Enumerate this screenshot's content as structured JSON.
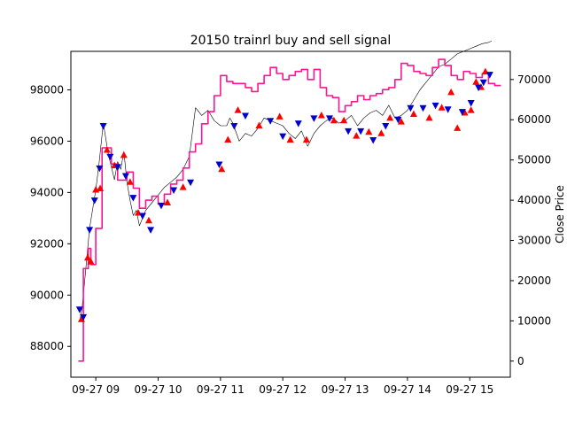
{
  "chart_data": {
    "type": "line",
    "title": "20150 trainrl buy and sell signal",
    "xlabel": "",
    "ylabel_left": "",
    "ylabel_right": "Close Price",
    "x_tick_labels": [
      "09-27 09",
      "09-27 10",
      "09-27 11",
      "09-27 12",
      "09-27 13",
      "09-27 14",
      "09-27 15"
    ],
    "x_ticks_hours": [
      9,
      10,
      11,
      12,
      13,
      14,
      15
    ],
    "x_range_hours": [
      8.6,
      15.65
    ],
    "y_left_ticks": [
      88000,
      90000,
      92000,
      94000,
      96000,
      98000
    ],
    "y_left_range": [
      86800,
      99500
    ],
    "y_right_ticks": [
      0,
      10000,
      20000,
      30000,
      40000,
      50000,
      60000,
      70000
    ],
    "y_right_range": [
      -4000,
      77000
    ],
    "grid": false,
    "colors": {
      "close": "#000000",
      "magenta": "#ff1493",
      "buy": "#ff0000",
      "sell": "#0000cc"
    },
    "series": [
      {
        "axis": "left",
        "color": "#000000",
        "x": [
          8.75,
          8.78,
          8.85,
          8.9,
          9.0,
          9.05,
          9.12,
          9.2,
          9.25,
          9.3,
          9.35,
          9.4,
          9.45,
          9.5,
          9.55,
          9.6,
          9.65,
          9.7,
          9.8,
          9.9,
          10.0,
          10.1,
          10.2,
          10.3,
          10.4,
          10.5,
          10.6,
          10.7,
          10.8,
          10.9,
          11.0,
          11.1,
          11.15,
          11.2,
          11.3,
          11.4,
          11.5,
          11.6,
          11.7,
          11.8,
          11.9,
          12.0,
          12.1,
          12.2,
          12.3,
          12.4,
          12.5,
          12.6,
          12.7,
          12.8,
          12.9,
          13.0,
          13.1,
          13.2,
          13.3,
          13.4,
          13.5,
          13.6,
          13.7,
          13.8,
          13.9,
          14.0,
          14.1,
          14.2,
          14.3,
          14.4,
          14.5,
          14.6,
          14.7,
          14.8,
          14.9,
          15.0,
          15.1,
          15.2,
          15.3,
          15.35
        ],
        "y": [
          89100,
          89500,
          91300,
          92600,
          94100,
          95100,
          96700,
          95500,
          95000,
          94500,
          95200,
          94900,
          95600,
          94400,
          93700,
          93100,
          93300,
          92700,
          93300,
          93600,
          93900,
          94200,
          94400,
          94600,
          94900,
          95400,
          97300,
          97000,
          97200,
          96800,
          96600,
          96600,
          96900,
          96700,
          96000,
          96300,
          96200,
          96500,
          96900,
          96800,
          96700,
          96600,
          96300,
          96100,
          96400,
          95800,
          96300,
          96600,
          96800,
          96900,
          96700,
          96800,
          97000,
          96600,
          96900,
          97100,
          97200,
          97000,
          97400,
          96900,
          97000,
          97200,
          97600,
          98000,
          98300,
          98600,
          98900,
          99000,
          99200,
          99400,
          99500,
          99600,
          99700,
          99800,
          99850,
          99900
        ]
      },
      {
        "axis": "right",
        "color": "#ff1493",
        "x": [
          8.72,
          8.8,
          8.88,
          8.92,
          9.0,
          9.1,
          9.25,
          9.35,
          9.5,
          9.6,
          9.7,
          9.8,
          9.9,
          10.0,
          10.1,
          10.2,
          10.3,
          10.4,
          10.5,
          10.6,
          10.7,
          10.8,
          10.9,
          11.0,
          11.1,
          11.2,
          11.3,
          11.4,
          11.5,
          11.6,
          11.7,
          11.8,
          11.9,
          12.0,
          12.1,
          12.2,
          12.3,
          12.4,
          12.5,
          12.6,
          12.7,
          12.8,
          12.9,
          13.0,
          13.1,
          13.2,
          13.3,
          13.4,
          13.5,
          13.6,
          13.7,
          13.8,
          13.9,
          14.0,
          14.1,
          14.2,
          14.3,
          14.4,
          14.5,
          14.6,
          14.7,
          14.8,
          14.9,
          15.0,
          15.1,
          15.2,
          15.3,
          15.4,
          15.5
        ],
        "y": [
          0,
          23000,
          28000,
          24000,
          33000,
          53000,
          49000,
          45000,
          47000,
          43000,
          38000,
          40000,
          41000,
          39000,
          41500,
          44000,
          45000,
          48000,
          52000,
          54000,
          59000,
          62000,
          66000,
          71000,
          69500,
          69000,
          69000,
          68000,
          67000,
          69000,
          71000,
          73000,
          71500,
          70000,
          71000,
          72000,
          72500,
          70000,
          72500,
          68000,
          66000,
          65500,
          62000,
          63500,
          64500,
          66000,
          65000,
          66000,
          66500,
          67500,
          68000,
          70000,
          74000,
          73500,
          72000,
          71500,
          71000,
          73000,
          75000,
          73500,
          71000,
          70000,
          72000,
          71500,
          70500,
          71500,
          69000,
          68500,
          68500
        ]
      }
    ],
    "buy_signals": {
      "marker": "triangle-up",
      "color": "#ff0000",
      "points": [
        [
          8.77,
          89050
        ],
        [
          8.87,
          91450
        ],
        [
          8.92,
          91300
        ],
        [
          9.0,
          94100
        ],
        [
          9.07,
          94150
        ],
        [
          9.18,
          95650
        ],
        [
          9.3,
          95050
        ],
        [
          9.45,
          95450
        ],
        [
          9.55,
          94400
        ],
        [
          9.68,
          93200
        ],
        [
          9.85,
          92900
        ],
        [
          10.15,
          93600
        ],
        [
          10.4,
          94200
        ],
        [
          11.02,
          94900
        ],
        [
          11.12,
          96050
        ],
        [
          11.28,
          97200
        ],
        [
          11.62,
          96600
        ],
        [
          11.95,
          96950
        ],
        [
          12.12,
          96050
        ],
        [
          12.38,
          96050
        ],
        [
          12.62,
          97000
        ],
        [
          12.82,
          96800
        ],
        [
          12.98,
          96800
        ],
        [
          13.18,
          96200
        ],
        [
          13.38,
          96350
        ],
        [
          13.58,
          96300
        ],
        [
          13.72,
          96900
        ],
        [
          13.9,
          96750
        ],
        [
          14.1,
          97050
        ],
        [
          14.35,
          96900
        ],
        [
          14.55,
          97300
        ],
        [
          14.7,
          97900
        ],
        [
          14.8,
          96500
        ],
        [
          14.92,
          97100
        ],
        [
          15.02,
          97200
        ],
        [
          15.1,
          98300
        ],
        [
          15.18,
          98100
        ],
        [
          15.25,
          98700
        ]
      ]
    },
    "sell_signals": {
      "marker": "triangle-down",
      "color": "#0000cc",
      "points": [
        [
          8.74,
          89450
        ],
        [
          8.8,
          89150
        ],
        [
          8.9,
          92550
        ],
        [
          8.98,
          93700
        ],
        [
          9.06,
          94950
        ],
        [
          9.12,
          96600
        ],
        [
          9.23,
          95400
        ],
        [
          9.35,
          95000
        ],
        [
          9.48,
          94650
        ],
        [
          9.6,
          93800
        ],
        [
          9.75,
          93100
        ],
        [
          9.88,
          92550
        ],
        [
          10.05,
          93500
        ],
        [
          10.25,
          94100
        ],
        [
          10.52,
          94400
        ],
        [
          10.98,
          95100
        ],
        [
          11.22,
          96600
        ],
        [
          11.4,
          97000
        ],
        [
          11.8,
          96800
        ],
        [
          12.0,
          96200
        ],
        [
          12.25,
          96700
        ],
        [
          12.5,
          96900
        ],
        [
          12.75,
          96900
        ],
        [
          13.05,
          96400
        ],
        [
          13.25,
          96400
        ],
        [
          13.45,
          96050
        ],
        [
          13.65,
          96600
        ],
        [
          13.85,
          96850
        ],
        [
          14.05,
          97300
        ],
        [
          14.25,
          97300
        ],
        [
          14.45,
          97400
        ],
        [
          14.65,
          97250
        ],
        [
          14.88,
          97150
        ],
        [
          15.02,
          97500
        ],
        [
          15.14,
          98100
        ],
        [
          15.22,
          98300
        ],
        [
          15.32,
          98600
        ]
      ]
    }
  }
}
